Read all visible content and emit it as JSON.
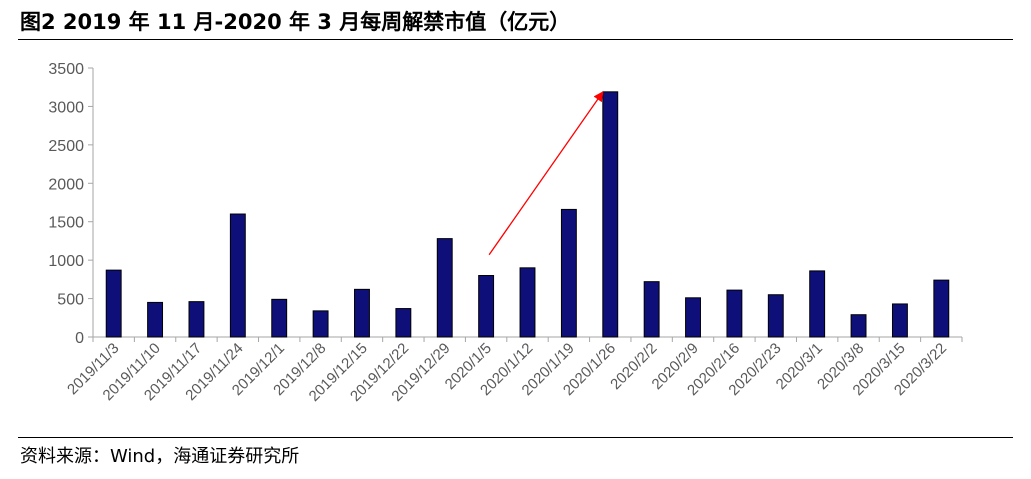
{
  "header": {
    "title": "图2  2019 年 11 月-2020 年 3 月每周解禁市值（亿元）"
  },
  "footer": {
    "source": "资料来源：Wind，海通证券研究所"
  },
  "colors": {
    "bar_fill": "#0f0f7a",
    "bar_stroke": "#000000",
    "arrow": "#ff0000",
    "axis": "#a6a6a6",
    "tick_text": "#595959"
  },
  "chart_data": {
    "type": "bar",
    "title": "",
    "xlabel": "",
    "ylabel": "",
    "ylim": [
      0,
      3500
    ],
    "yticks": [
      0,
      500,
      1000,
      1500,
      2000,
      2500,
      3000,
      3500
    ],
    "grid": false,
    "categories": [
      "2019/11/3",
      "2019/11/10",
      "2019/11/17",
      "2019/11/24",
      "2019/12/1",
      "2019/12/8",
      "2019/12/15",
      "2019/12/22",
      "2019/12/29",
      "2020/1/5",
      "2020/1/12",
      "2020/1/19",
      "2020/1/26",
      "2020/2/2",
      "2020/2/9",
      "2020/2/16",
      "2020/2/23",
      "2020/3/1",
      "2020/3/8",
      "2020/3/15",
      "2020/3/22"
    ],
    "values": [
      870,
      450,
      460,
      1600,
      490,
      340,
      620,
      370,
      1280,
      800,
      900,
      1660,
      3190,
      720,
      510,
      610,
      550,
      860,
      290,
      430,
      740
    ],
    "annotations": [
      {
        "type": "arrow",
        "from": {
          "category": "2020/1/5",
          "value": 1070
        },
        "to": {
          "category": "2020/1/26",
          "value": 3190
        }
      }
    ]
  }
}
